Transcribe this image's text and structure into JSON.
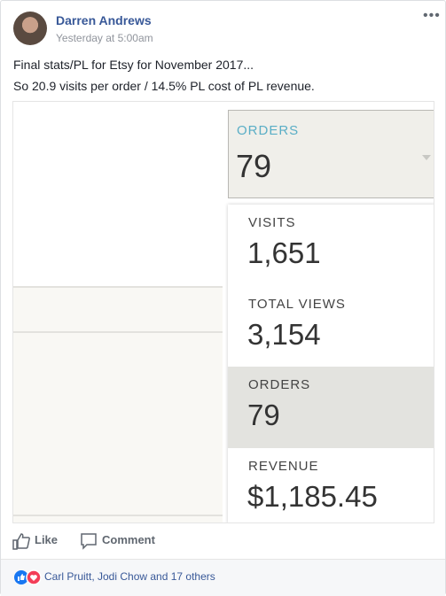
{
  "post": {
    "author": "Darren Andrews",
    "timestamp": "Yesterday at 5:00am",
    "text": [
      "Final stats/PL for Etsy for November 2017...",
      "So 20.9 visits per order / 14.5% PL cost of PL revenue."
    ],
    "image": {
      "dropdown": {
        "label": "ORDERS",
        "value": "79"
      },
      "stats": [
        {
          "label": "VISITS",
          "value": "1,651"
        },
        {
          "label": "TOTAL VIEWS",
          "value": "3,154"
        },
        {
          "label": "ORDERS",
          "value": "79"
        },
        {
          "label": "REVENUE",
          "value": "$1,185.45"
        }
      ]
    },
    "actions": [
      "Like",
      "Comment"
    ],
    "reactions": "Carl Pruitt, Jodi Chow and 17 others"
  }
}
